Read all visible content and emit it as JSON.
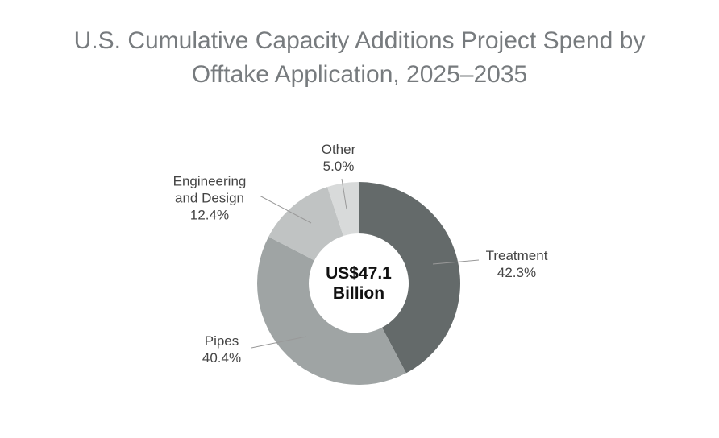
{
  "chart_data": {
    "type": "pie",
    "title": "U.S. Cumulative Capacity Additions Project Spend by Offtake Application, 2025–2035",
    "categories": [
      "Treatment",
      "Pipes",
      "Engineering and Design",
      "Other"
    ],
    "values": [
      42.3,
      40.4,
      12.4,
      5.0
    ],
    "value_labels": [
      "42.3%",
      "40.4%",
      "12.4%",
      "5.0%"
    ],
    "colors": [
      "#646a6a",
      "#9fa4a4",
      "#c0c3c3",
      "#d8dada"
    ],
    "center_label": [
      "US$47.1",
      "Billion"
    ]
  }
}
